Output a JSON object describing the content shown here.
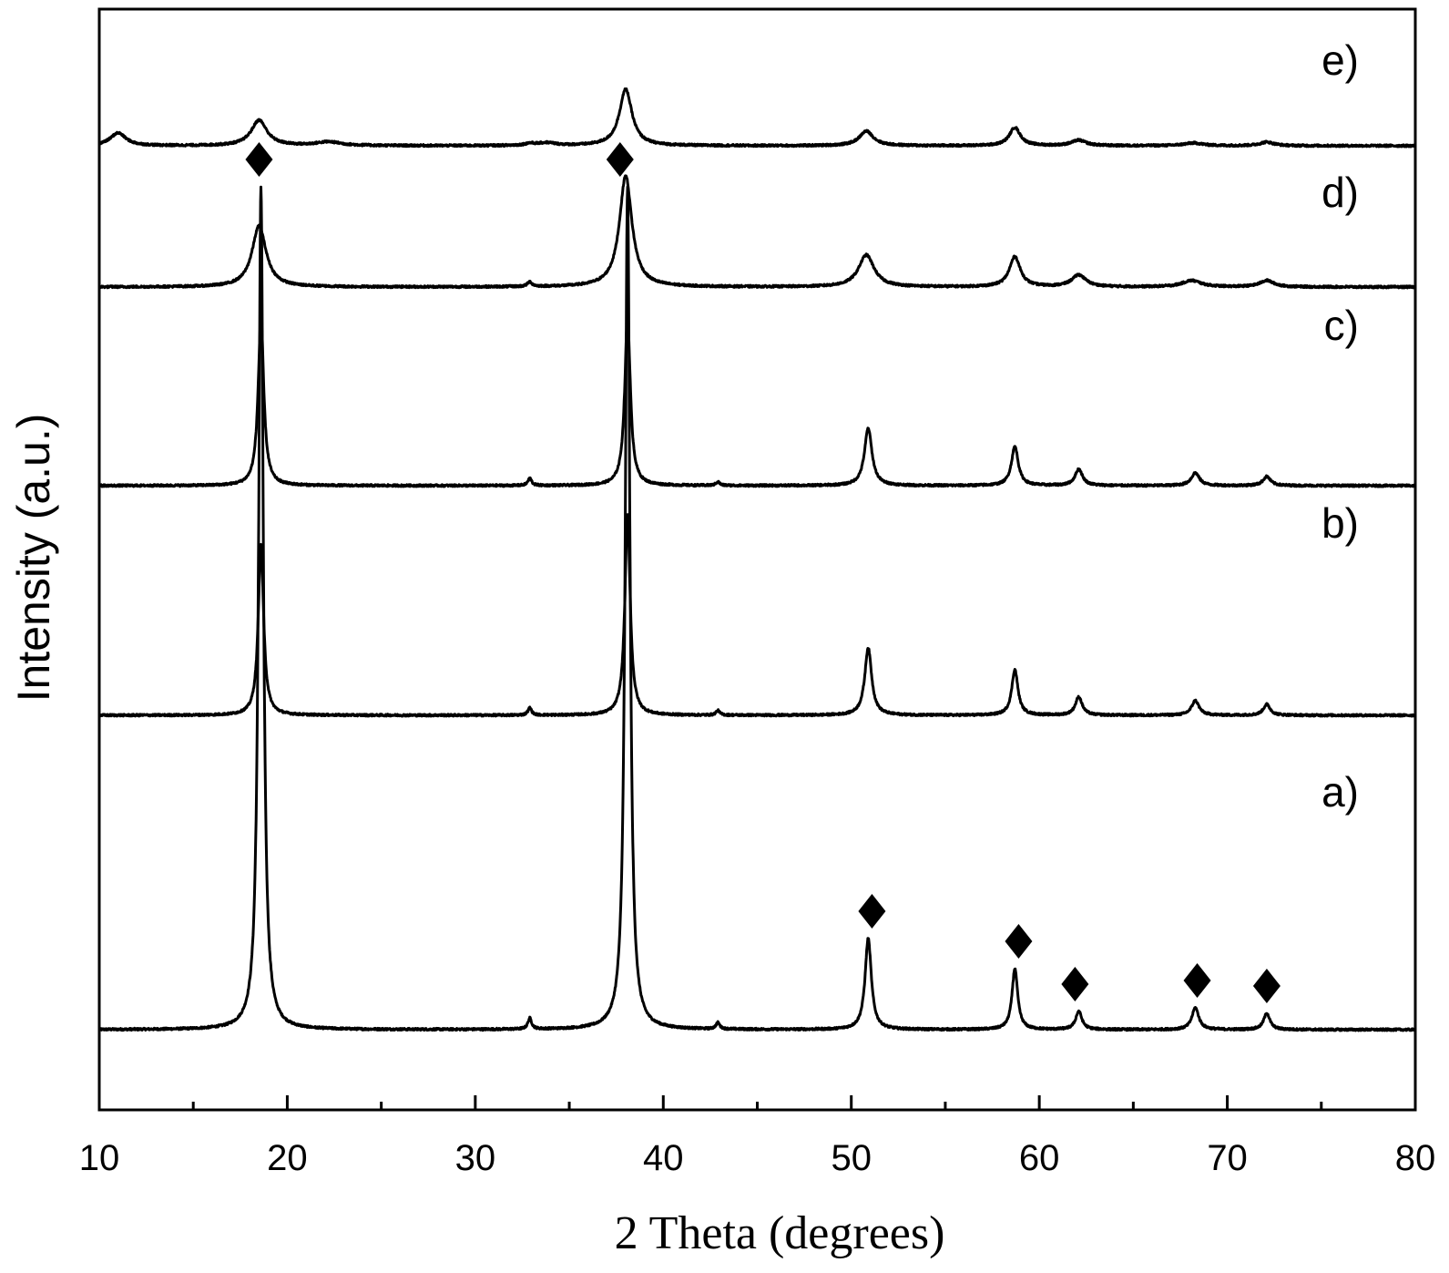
{
  "chart_data": {
    "type": "line",
    "xlabel": "2 Theta (degrees)",
    "ylabel": "Intensity (a.u.)",
    "xlim": [
      10,
      80
    ],
    "major_ticks": [
      10,
      20,
      30,
      40,
      50,
      60,
      70,
      80
    ],
    "minor_ticks": [
      15,
      25,
      35,
      45,
      55,
      65,
      75
    ],
    "y_tick_labels": "none",
    "grid": false,
    "legend": "none",
    "stacked_offset": true,
    "series": [
      {
        "name": "a)",
        "baseline": 0,
        "peaks": [
          {
            "x": 18.6,
            "y": 925,
            "w": 0.15
          },
          {
            "x": 32.9,
            "y": 12,
            "w": 0.12
          },
          {
            "x": 38.1,
            "y": 925,
            "w": 0.15
          },
          {
            "x": 42.9,
            "y": 7,
            "w": 0.12
          },
          {
            "x": 50.9,
            "y": 100,
            "w": 0.2
          },
          {
            "x": 58.7,
            "y": 67,
            "w": 0.18
          },
          {
            "x": 62.1,
            "y": 20,
            "w": 0.2
          },
          {
            "x": 68.3,
            "y": 24,
            "w": 0.22
          },
          {
            "x": 72.1,
            "y": 18,
            "w": 0.2
          }
        ],
        "markers": {
          "symbol": "diamond",
          "x": [
            18.5,
            37.7,
            51.1,
            58.9,
            61.9,
            68.4,
            72.1
          ]
        }
      },
      {
        "name": "b)",
        "baseline": 345,
        "peaks": [
          {
            "x": 18.6,
            "y": 188,
            "w": 0.17
          },
          {
            "x": 32.9,
            "y": 8,
            "w": 0.12
          },
          {
            "x": 38.1,
            "y": 220,
            "w": 0.17
          },
          {
            "x": 42.9,
            "y": 5,
            "w": 0.12
          },
          {
            "x": 50.9,
            "y": 74,
            "w": 0.22
          },
          {
            "x": 58.7,
            "y": 50,
            "w": 0.2
          },
          {
            "x": 62.1,
            "y": 20,
            "w": 0.22
          },
          {
            "x": 68.3,
            "y": 16,
            "w": 0.24
          },
          {
            "x": 72.1,
            "y": 12,
            "w": 0.22
          }
        ]
      },
      {
        "name": "c)",
        "baseline": 597,
        "peaks": [
          {
            "x": 18.6,
            "y": 184,
            "w": 0.18
          },
          {
            "x": 32.9,
            "y": 8,
            "w": 0.12
          },
          {
            "x": 38.1,
            "y": 185,
            "w": 0.18
          },
          {
            "x": 42.9,
            "y": 4,
            "w": 0.12
          },
          {
            "x": 50.9,
            "y": 63,
            "w": 0.24
          },
          {
            "x": 58.7,
            "y": 43,
            "w": 0.22
          },
          {
            "x": 62.1,
            "y": 18,
            "w": 0.24
          },
          {
            "x": 68.3,
            "y": 14,
            "w": 0.26
          },
          {
            "x": 72.1,
            "y": 10,
            "w": 0.24
          }
        ]
      },
      {
        "name": "d)",
        "baseline": 815,
        "peaks": [
          {
            "x": 18.5,
            "y": 67,
            "w": 0.45
          },
          {
            "x": 32.9,
            "y": 5,
            "w": 0.15
          },
          {
            "x": 38.0,
            "y": 122,
            "w": 0.4
          },
          {
            "x": 50.8,
            "y": 35,
            "w": 0.5
          },
          {
            "x": 58.7,
            "y": 33,
            "w": 0.35
          },
          {
            "x": 62.1,
            "y": 13,
            "w": 0.45
          },
          {
            "x": 68.1,
            "y": 7,
            "w": 0.6
          },
          {
            "x": 72.1,
            "y": 7,
            "w": 0.45
          }
        ]
      },
      {
        "name": "e)",
        "baseline": 970,
        "peaks": [
          {
            "x": 11.0,
            "y": 14,
            "w": 0.5
          },
          {
            "x": 18.5,
            "y": 28,
            "w": 0.5
          },
          {
            "x": 22.2,
            "y": 4,
            "w": 0.8
          },
          {
            "x": 32.9,
            "y": 2,
            "w": 0.3
          },
          {
            "x": 33.8,
            "y": 3,
            "w": 0.6
          },
          {
            "x": 38.0,
            "y": 62,
            "w": 0.4
          },
          {
            "x": 50.8,
            "y": 16,
            "w": 0.45
          },
          {
            "x": 58.7,
            "y": 20,
            "w": 0.35
          },
          {
            "x": 62.1,
            "y": 6,
            "w": 0.45
          },
          {
            "x": 68.2,
            "y": 3,
            "w": 0.6
          },
          {
            "x": 72.1,
            "y": 4,
            "w": 0.45
          }
        ]
      }
    ]
  }
}
